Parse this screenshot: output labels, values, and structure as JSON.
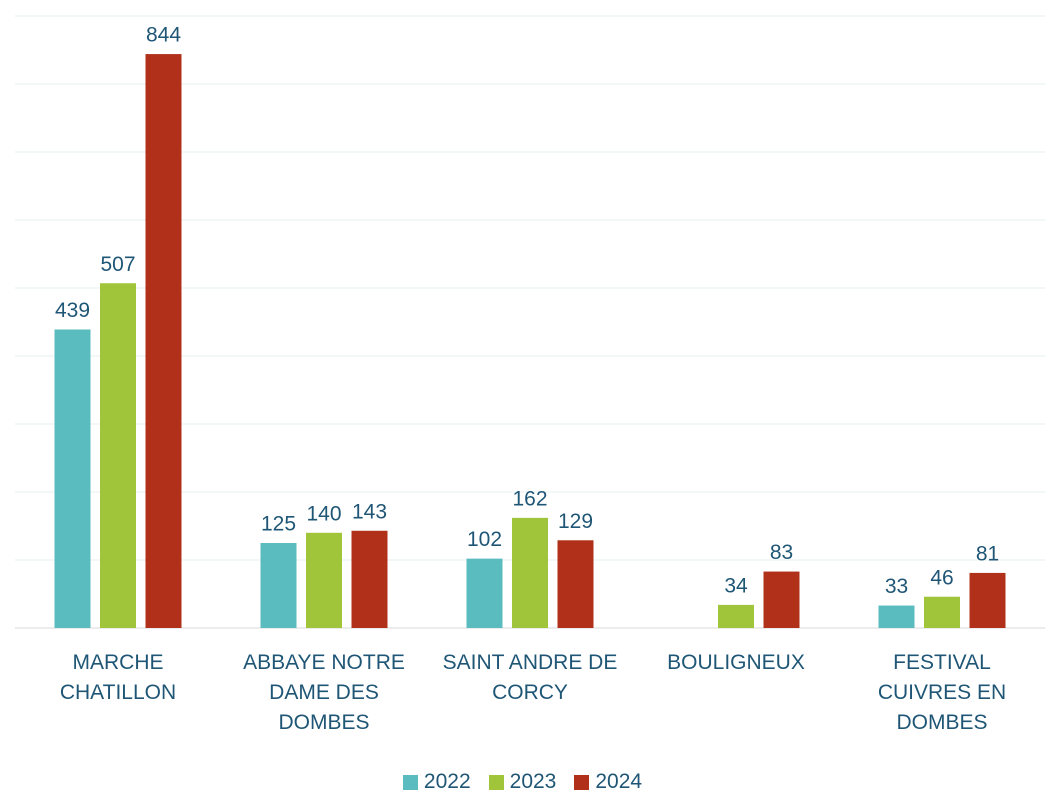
{
  "chart_data": {
    "type": "bar",
    "categories": [
      "MARCHE CHATILLON",
      "ABBAYE NOTRE DAME DES DOMBES",
      "SAINT ANDRE DE CORCY",
      "BOULIGNEUX",
      "FESTIVAL CUIVRES EN DOMBES"
    ],
    "series": [
      {
        "name": "2022",
        "color": "#5bbcbf",
        "values": [
          439,
          125,
          102,
          null,
          33
        ]
      },
      {
        "name": "2023",
        "color": "#a0c43a",
        "values": [
          507,
          140,
          162,
          34,
          46
        ]
      },
      {
        "name": "2024",
        "color": "#b0301a",
        "values": [
          844,
          143,
          129,
          83,
          81
        ]
      }
    ],
    "ylim": [
      0,
      900
    ],
    "yticks": [
      0,
      100,
      200,
      300,
      400,
      500,
      600,
      700,
      800,
      900
    ],
    "grid": true,
    "legend": "bottom"
  }
}
